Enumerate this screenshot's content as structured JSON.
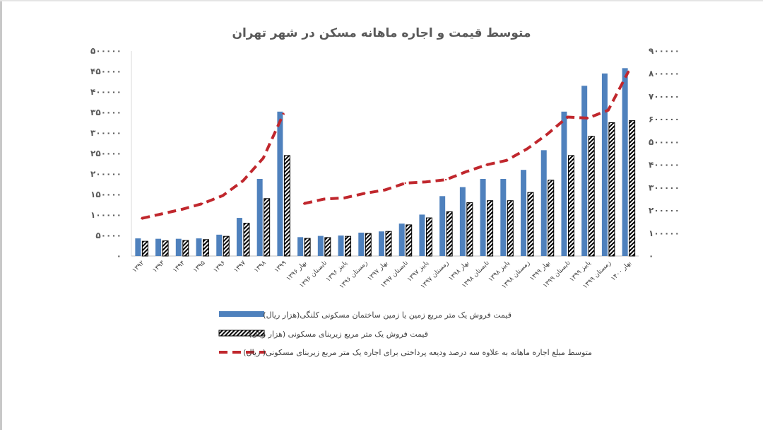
{
  "chart_data": {
    "type": "bar",
    "title": "متوسط قیمت و اجاره ماهانه مسکن در شهر تهران",
    "categories": [
      "۱۳۹۲",
      "۱۳۹۳",
      "۱۳۹۴",
      "۱۳۹۵",
      "۱۳۹۶",
      "۱۳۹۷",
      "۱۳۹۸",
      "۱۳۹۹",
      "بهار ۱۳۹۶",
      "تابستان ۱۳۹۶",
      "پاییز ۱۳۹۶",
      "زمستان ۱۳۹۶",
      "بهار ۱۳۹۷",
      "تابستان ۱۳۹۷",
      "پاییز ۱۳۹۷",
      "زمستان ۱۳۹۷",
      "بهار ۱۳۹۸",
      "تابستان ۱۳۹۸",
      "پاییز ۱۳۹۸",
      "زمستان ۱۳۹۸",
      "بهار ۱۳۹۹",
      "تابستان ۱۳۹۹",
      "پاییز ۱۳۹۹",
      "زمستان ۱۳۹۹",
      "بهار ۱۴۰۰"
    ],
    "series": [
      {
        "name": "قیمت فروش یک متر مربع زمین یا زمین ساختمان مسکونی کلنگی(هزار ریال)",
        "axis": "left",
        "style": "bar-solid",
        "color": "#4f81bd",
        "values": [
          43000,
          42000,
          42000,
          43000,
          52000,
          93000,
          188000,
          352000,
          46000,
          49000,
          50000,
          57000,
          60000,
          79000,
          101000,
          146000,
          168000,
          188000,
          188000,
          210000,
          258000,
          352000,
          415000,
          445000,
          458000
        ]
      },
      {
        "name": "قیمت فروش یک متر مربع زیربنای مسکونی (هزار ریال)",
        "axis": "left",
        "style": "bar-hatched",
        "color": "#000000",
        "values": [
          36000,
          37000,
          38000,
          40000,
          48000,
          80000,
          140000,
          245000,
          43000,
          45000,
          48000,
          55000,
          60000,
          76000,
          93000,
          108000,
          130000,
          135000,
          135000,
          155000,
          185000,
          245000,
          292000,
          325000,
          330000
        ]
      },
      {
        "name": "متوسط مبلغ اجاره ماهانه به علاوه سه درصد ودیعه پرداختی برای اجاره یک متر مربع زیربنای مسکونی( ریال)",
        "axis": "right",
        "style": "line-dashed",
        "color": "#c0272d",
        "values": [
          165000,
          185000,
          205000,
          230000,
          265000,
          330000,
          430000,
          625000,
          230000,
          250000,
          255000,
          275000,
          290000,
          320000,
          325000,
          335000,
          370000,
          400000,
          420000,
          470000,
          535000,
          610000,
          605000,
          640000,
          810000
        ]
      }
    ],
    "ylim_left": [
      0,
      500000
    ],
    "yticks_left": [
      "۰",
      "۵۰۰۰۰",
      "۱۰۰۰۰۰",
      "۱۵۰۰۰۰",
      "۲۰۰۰۰۰",
      "۲۵۰۰۰۰",
      "۳۰۰۰۰۰",
      "۳۵۰۰۰۰",
      "۴۰۰۰۰۰",
      "۴۵۰۰۰۰",
      "۵۰۰۰۰۰"
    ],
    "ylim_right": [
      0,
      900000
    ],
    "yticks_right": [
      "۰",
      "۱۰۰۰۰۰",
      "۲۰۰۰۰۰",
      "۳۰۰۰۰۰",
      "۴۰۰۰۰۰",
      "۵۰۰۰۰۰",
      "۶۰۰۰۰۰",
      "۷۰۰۰۰۰",
      "۸۰۰۰۰۰",
      "۹۰۰۰۰۰"
    ],
    "grid": false,
    "legend_position": "bottom"
  }
}
